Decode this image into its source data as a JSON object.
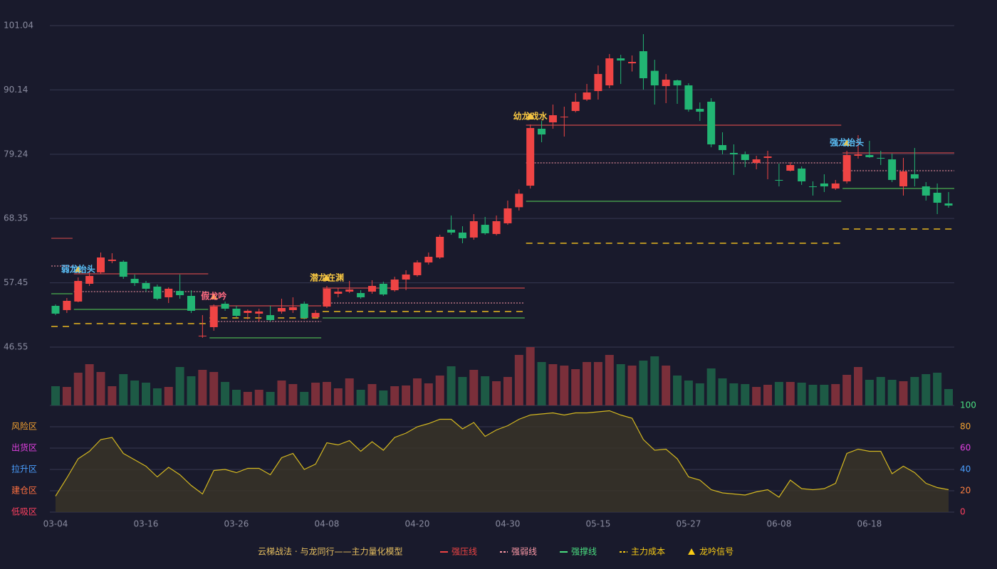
{
  "chart_data": {
    "type": "candlestick",
    "categories": [
      "03-04",
      null,
      null,
      null,
      null,
      null,
      null,
      null,
      "03-16",
      null,
      null,
      null,
      null,
      null,
      null,
      null,
      "03-26",
      null,
      null,
      null,
      null,
      null,
      null,
      null,
      "04-08",
      null,
      null,
      null,
      null,
      null,
      null,
      null,
      "04-20",
      null,
      null,
      null,
      null,
      null,
      null,
      null,
      "04-30",
      null,
      null,
      null,
      null,
      null,
      null,
      null,
      "05-15",
      null,
      null,
      null,
      null,
      null,
      null,
      null,
      "05-27",
      null,
      null,
      null,
      null,
      null,
      null,
      null,
      "06-08",
      null,
      null,
      null,
      null,
      null,
      null,
      null,
      "06-18",
      null,
      null,
      null,
      null,
      null,
      null,
      null
    ],
    "open": [
      53.54,
      52.82,
      54.27,
      57.28,
      59.21,
      61.14,
      61.02,
      58.12,
      57.4,
      56.8,
      54.99,
      56.07,
      55.23,
      48.36,
      49.93,
      53.9,
      53.06,
      52.34,
      52.22,
      51.97,
      52.58,
      52.82,
      53.9,
      51.61,
      53.42,
      55.59,
      55.95,
      55.71,
      55.95,
      57.28,
      56.19,
      58.0,
      58.73,
      60.9,
      61.74,
      66.44,
      65.96,
      65.12,
      67.28,
      65.72,
      67.53,
      70.26,
      73.91,
      83.56,
      84.64,
      85.49,
      86.57,
      88.5,
      89.95,
      90.91,
      95.49,
      94.65,
      96.7,
      93.38,
      90.79,
      91.76,
      90.91,
      86.93,
      88.14,
      80.79,
      79.46,
      79.22,
      77.77,
      78.62,
      74.88,
      76.45,
      76.81,
      73.79,
      74.28,
      73.43,
      74.64,
      78.98,
      79.1,
      78.62,
      78.37,
      73.79,
      75.84,
      73.79,
      72.71,
      70.9
    ],
    "close": [
      52.22,
      54.39,
      57.76,
      58.61,
      61.74,
      61.38,
      58.48,
      57.4,
      56.44,
      54.75,
      56.44,
      55.35,
      52.7,
      48.48,
      53.42,
      53.06,
      51.85,
      52.7,
      52.58,
      51.13,
      53.18,
      53.3,
      51.49,
      52.34,
      56.44,
      55.95,
      56.31,
      54.99,
      56.92,
      55.47,
      58.0,
      58.85,
      60.9,
      61.86,
      65.24,
      65.96,
      65.0,
      67.89,
      65.84,
      67.89,
      70.06,
      72.55,
      83.68,
      82.59,
      85.85,
      85.61,
      88.14,
      89.71,
      92.84,
      95.49,
      95.13,
      94.89,
      92.12,
      90.91,
      91.88,
      90.91,
      86.81,
      86.45,
      80.91,
      79.94,
      79.22,
      78.25,
      78.37,
      78.86,
      74.76,
      77.41,
      74.64,
      73.67,
      73.79,
      74.28,
      79.1,
      79.22,
      78.74,
      78.5,
      74.88,
      76.33,
      75.12,
      72.23,
      71.02,
      70.54
    ],
    "high": [
      53.78,
      54.87,
      58.36,
      59.57,
      62.58,
      62.46,
      61.26,
      58.85,
      57.76,
      57.16,
      56.68,
      58.85,
      56.19,
      51.97,
      53.78,
      54.27,
      53.54,
      52.94,
      53.06,
      53.54,
      54.75,
      54.99,
      54.27,
      52.82,
      56.92,
      56.56,
      57.76,
      56.19,
      57.88,
      57.64,
      58.48,
      59.57,
      61.26,
      62.58,
      65.6,
      68.85,
      67.04,
      69.09,
      68.61,
      68.85,
      71.38,
      73.28,
      84.28,
      84.88,
      87.66,
      87.3,
      89.59,
      91.15,
      94.29,
      96.22,
      96.1,
      95.98,
      99.59,
      95.25,
      92.84,
      91.88,
      91.27,
      88.02,
      88.74,
      82.96,
      80.91,
      79.7,
      78.98,
      79.82,
      77.65,
      77.89,
      77.17,
      74.64,
      75.84,
      74.88,
      79.82,
      82.47,
      81.51,
      79.82,
      79.34,
      78.62,
      80.3,
      74.52,
      74.28,
      72.83
    ],
    "low": [
      51.97,
      52.34,
      54.14,
      56.92,
      58.97,
      60.77,
      58.12,
      56.92,
      55.95,
      54.51,
      54.02,
      54.75,
      52.34,
      48.12,
      49.32,
      52.7,
      51.61,
      51.25,
      50.89,
      50.89,
      52.22,
      52.34,
      51.25,
      51.37,
      53.18,
      54.99,
      55.71,
      54.75,
      55.59,
      55.23,
      55.95,
      56.19,
      58.48,
      60.53,
      61.5,
      65.6,
      64.15,
      64.75,
      65.6,
      65.48,
      67.28,
      69.7,
      73.43,
      81.27,
      83.56,
      82.23,
      86.33,
      88.26,
      88.5,
      90.43,
      91.15,
      93.26,
      90.19,
      87.66,
      87.9,
      87.78,
      86.45,
      84.88,
      80.42,
      79.22,
      75.72,
      77.05,
      76.69,
      75.0,
      73.79,
      76.33,
      74.04,
      72.23,
      72.83,
      73.19,
      74.28,
      78.5,
      78.62,
      77.41,
      74.52,
      72.23,
      73.79,
      71.38,
      69.09,
      70.18
    ],
    "volume": [
      27,
      26,
      46,
      58,
      47,
      27,
      44,
      35,
      32,
      24,
      26,
      54,
      41,
      50,
      47,
      33,
      22,
      19,
      22,
      19,
      35,
      30,
      19,
      32,
      33,
      24,
      38,
      22,
      30,
      21,
      27,
      28,
      38,
      31,
      42,
      55,
      40,
      50,
      41,
      34,
      40,
      71,
      82,
      61,
      58,
      56,
      51,
      61,
      61,
      71,
      58,
      56,
      63,
      69,
      56,
      42,
      35,
      31,
      52,
      38,
      31,
      30,
      26,
      29,
      33,
      33,
      32,
      29,
      29,
      30,
      43,
      54,
      36,
      40,
      36,
      34,
      40,
      44,
      46,
      23
    ],
    "ylim": [
      46.55,
      101.04
    ],
    "yticks": [
      46.55,
      57.45,
      68.35,
      79.24,
      90.14,
      101.04
    ],
    "grid": true,
    "up_color": "#ef4444",
    "down_color": "#22b573",
    "volume_up_color": "#7a2f3a",
    "volume_down_color": "#1d5a45",
    "indicator": {
      "values": [
        15,
        32,
        50,
        57,
        68,
        70,
        55,
        49,
        43,
        33,
        42,
        35,
        25,
        17,
        39,
        40,
        37,
        41,
        41,
        35,
        51,
        55,
        40,
        45,
        65,
        63,
        67,
        57,
        66,
        58,
        70,
        74,
        80,
        83,
        87,
        87,
        78,
        84,
        71,
        77,
        81,
        87,
        91,
        92,
        93,
        91,
        93,
        93,
        94,
        95,
        91,
        88,
        68,
        58,
        59,
        50,
        33,
        30,
        21,
        18,
        17,
        16,
        19,
        21,
        14,
        30,
        22,
        21,
        22,
        27,
        55,
        59,
        57,
        57,
        36,
        43,
        37,
        27,
        23,
        21
      ],
      "color": "#d4b820",
      "ylim": [
        0,
        100
      ],
      "yticks": [
        0,
        20,
        40,
        60,
        80,
        100
      ],
      "tick_colors": [
        "#ff4060",
        "#ff8040",
        "#4a9fff",
        "#e040e0",
        "#f0a030",
        "#4ade80"
      ],
      "zones": [
        {
          "label": "风险区",
          "value": 80,
          "color": "#f0a030"
        },
        {
          "label": "出货区",
          "value": 60,
          "color": "#e040e0"
        },
        {
          "label": "拉升区",
          "value": 40,
          "color": "#4a9fff"
        },
        {
          "label": "建仓区",
          "value": 20,
          "color": "#ff7040"
        },
        {
          "label": "低吸区",
          "value": 0,
          "color": "#ff4060"
        }
      ]
    },
    "levels": [
      {
        "start": 0,
        "end": 1,
        "resistance": 64.99,
        "pivot": 60.29,
        "support": 55.59,
        "cost": 50.05
      },
      {
        "start": 2,
        "end": 13,
        "resistance": 58.97,
        "pivot": 55.95,
        "support": 52.94,
        "cost": 50.53
      },
      {
        "start": 14,
        "end": 23,
        "resistance": 53.54,
        "pivot": 50.89,
        "support": 48.12,
        "cost": 51.49
      },
      {
        "start": 24,
        "end": 41,
        "resistance": 56.56,
        "pivot": 54.02,
        "support": 51.49,
        "cost": 52.58
      },
      {
        "start": 42,
        "end": 69,
        "resistance": 84.16,
        "pivot": 77.77,
        "support": 71.26,
        "cost": 64.15
      },
      {
        "start": 70,
        "end": 79,
        "resistance": 79.46,
        "pivot": 76.45,
        "support": 73.43,
        "cost": 66.56
      }
    ],
    "level_colors": {
      "resistance": "#c84848",
      "pivot": "#ff9aa8",
      "support": "#4caf50",
      "cost": "#e8b820"
    },
    "signals": [
      {
        "index": 2,
        "label": "弱龙抬头",
        "color": "#5bc0f8"
      },
      {
        "index": 14,
        "label": "假龙吟",
        "color": "#ff6b81"
      },
      {
        "index": 24,
        "label": "潜龙在渊",
        "color": "#f5c542"
      },
      {
        "index": 42,
        "label": "幼龙戏水",
        "color": "#f5c542"
      },
      {
        "index": 70,
        "label": "强龙抬头",
        "color": "#5bc0f8"
      }
    ],
    "signal_marker_color": "#f5c542",
    "legend": {
      "title": "云梯战法 · 与龙同行——主力量化模型",
      "title_color": "#e8c060",
      "items": [
        {
          "name": "强压线",
          "color": "#ef4444",
          "style": "solid"
        },
        {
          "name": "强弱线",
          "color": "#ff9aa8",
          "style": "dashed"
        },
        {
          "name": "强撑线",
          "color": "#4ade80",
          "style": "solid"
        },
        {
          "name": "主力成本",
          "color": "#facc15",
          "style": "dashed"
        },
        {
          "name": "龙吟信号",
          "color": "#facc15",
          "style": "triangle"
        }
      ]
    }
  }
}
